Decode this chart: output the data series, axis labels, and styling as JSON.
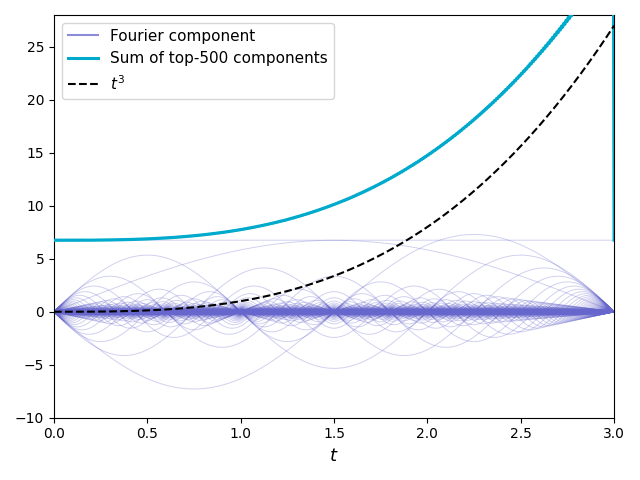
{
  "t_start": 0.0,
  "t_end": 3.0,
  "n_points": 2000,
  "n_components": 500,
  "fourier_component_color": "#6666cc",
  "fourier_component_alpha": 0.3,
  "fourier_component_lw": 0.7,
  "sum_color": "#00aacc",
  "sum_lw": 2.2,
  "sum_alpha": 1.0,
  "true_color": "black",
  "true_lw": 1.5,
  "true_linestyle": "--",
  "xlabel": "$t$",
  "xlim": [
    0.0,
    3.0
  ],
  "ylim": [
    -10,
    28
  ],
  "legend_fontsize": 11,
  "figsize": [
    6.4,
    4.8
  ],
  "dpi": 100
}
